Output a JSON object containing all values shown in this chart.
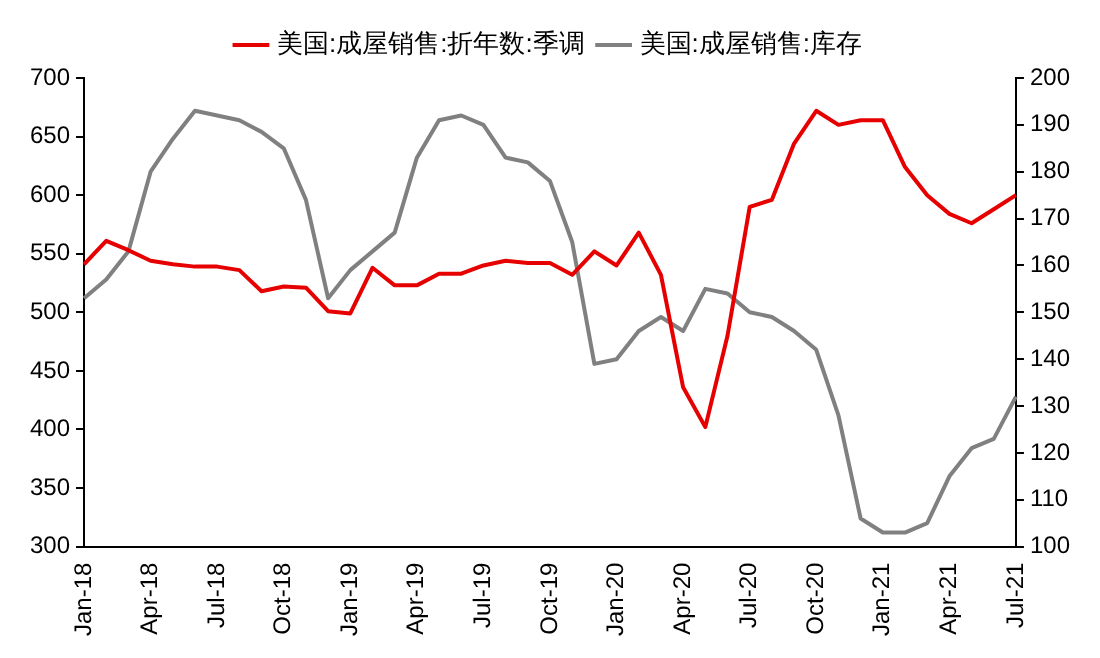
{
  "chart_data": {
    "type": "line",
    "categories": [
      "Jan-18",
      null,
      null,
      "Apr-18",
      null,
      null,
      "Jul-18",
      null,
      null,
      "Oct-18",
      null,
      null,
      "Jan-19",
      null,
      null,
      "Apr-19",
      null,
      null,
      "Jul-19",
      null,
      null,
      "Oct-19",
      null,
      null,
      "Jan-20",
      null,
      null,
      "Apr-20",
      null,
      null,
      "Jul-20",
      null,
      null,
      "Oct-20",
      null,
      null,
      "Jan-21",
      null,
      null,
      "Apr-21",
      null,
      null,
      "Jul-21"
    ],
    "series": [
      {
        "name": "美国:成屋销售:折年数:季调",
        "color": "#e60000",
        "values": [
          541,
          561,
          553,
          544,
          541,
          539,
          539,
          536,
          518,
          522,
          521,
          501,
          499,
          538,
          523,
          523,
          533,
          533,
          540,
          544,
          542,
          542,
          532,
          552,
          540,
          568,
          532,
          436,
          402,
          480,
          590,
          596,
          644,
          672,
          660,
          664,
          664,
          624,
          600,
          584,
          576,
          588,
          600
        ]
      },
      {
        "name": "美国:成屋销售:库存",
        "color": "#808080",
        "axis": "y2",
        "values": [
          153,
          157,
          163,
          180,
          187,
          193,
          192,
          191,
          188.5,
          185,
          174,
          153,
          159,
          163,
          167,
          183,
          191,
          192,
          190,
          183,
          182,
          178,
          165,
          139,
          140,
          146,
          149,
          146,
          155,
          154,
          150,
          149,
          146,
          142,
          128,
          106,
          103,
          103,
          105,
          115,
          121,
          123,
          132
        ]
      }
    ],
    "ylim": [
      300,
      700
    ],
    "yticks": [
      300,
      350,
      400,
      450,
      500,
      550,
      600,
      650,
      700
    ],
    "y2lim": [
      100,
      200
    ],
    "y2ticks": [
      100,
      110,
      120,
      130,
      140,
      150,
      160,
      170,
      180,
      190,
      200
    ],
    "grid": false,
    "legend": "top",
    "marker": "none",
    "line_style": "solid"
  }
}
